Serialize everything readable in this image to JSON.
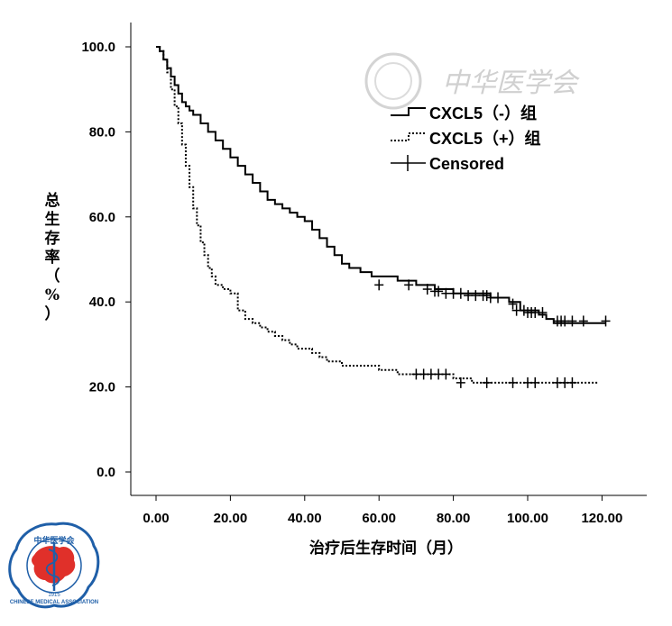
{
  "watermark": {
    "text": "中华医学会",
    "color": "#cfcfcf"
  },
  "logo": {
    "top_text": "中华医学会",
    "ring_text": "CHINESE MEDICAL ASSOCIATION",
    "year": "1915",
    "accent": "#e0302a",
    "ring": "#1f5fa8"
  },
  "chart_data": {
    "type": "line",
    "title": "",
    "xlabel": "治疗后生存时间（月）",
    "ylabel_chars": [
      "总",
      "生",
      "存",
      "率",
      "（",
      "%",
      "）"
    ],
    "xlim": [
      0,
      133.5
    ],
    "ylim": [
      0,
      100
    ],
    "xticks": [
      0,
      20,
      40,
      60,
      80,
      100,
      120
    ],
    "xtick_labels": [
      "0.00",
      "20.00",
      "40.00",
      "60.00",
      "80.00",
      "100.00",
      "120.00"
    ],
    "yticks": [
      0,
      20,
      40,
      60,
      80,
      100
    ],
    "ytick_labels": [
      "0.0",
      "20.0",
      "40.0",
      "60.0",
      "80.0",
      "100.0"
    ],
    "grid": false,
    "legend_position": "top-right",
    "legend": [
      "CXCL5（-）组",
      "CXCL5（+）组",
      "Censored"
    ],
    "series": [
      {
        "name": "CXCL5（-）组",
        "style": "solid",
        "points": [
          [
            0,
            100
          ],
          [
            1,
            99
          ],
          [
            2,
            97
          ],
          [
            3,
            95
          ],
          [
            4,
            93
          ],
          [
            5,
            91
          ],
          [
            6,
            89
          ],
          [
            7,
            87
          ],
          [
            8,
            86
          ],
          [
            9,
            85
          ],
          [
            10,
            84
          ],
          [
            12,
            82
          ],
          [
            14,
            80
          ],
          [
            16,
            78
          ],
          [
            18,
            76
          ],
          [
            20,
            74
          ],
          [
            22,
            72
          ],
          [
            24,
            70
          ],
          [
            26,
            68
          ],
          [
            28,
            66
          ],
          [
            30,
            64
          ],
          [
            32,
            63
          ],
          [
            34,
            62
          ],
          [
            36,
            61
          ],
          [
            38,
            60
          ],
          [
            40,
            59
          ],
          [
            42,
            57
          ],
          [
            44,
            55
          ],
          [
            46,
            53
          ],
          [
            48,
            51
          ],
          [
            50,
            49
          ],
          [
            52,
            48
          ],
          [
            55,
            47
          ],
          [
            58,
            46
          ],
          [
            60,
            46
          ],
          [
            65,
            45
          ],
          [
            70,
            44
          ],
          [
            75,
            43
          ],
          [
            80,
            42
          ],
          [
            85,
            42
          ],
          [
            90,
            41
          ],
          [
            95,
            40
          ],
          [
            98,
            38
          ],
          [
            100,
            38
          ],
          [
            103,
            37
          ],
          [
            105,
            36
          ],
          [
            107,
            35
          ],
          [
            110,
            35
          ],
          [
            115,
            35
          ],
          [
            121,
            35
          ]
        ],
        "censored": [
          [
            60,
            44
          ],
          [
            68,
            44
          ],
          [
            73,
            43
          ],
          [
            75,
            42.5
          ],
          [
            76,
            42.5
          ],
          [
            78,
            42
          ],
          [
            80,
            42
          ],
          [
            82,
            42
          ],
          [
            84,
            41.5
          ],
          [
            86,
            41.5
          ],
          [
            88,
            41.5
          ],
          [
            89,
            41.5
          ],
          [
            90,
            41
          ],
          [
            92,
            41
          ],
          [
            96,
            39.5
          ],
          [
            97,
            38
          ],
          [
            99,
            38
          ],
          [
            100,
            37.5
          ],
          [
            101,
            37.5
          ],
          [
            102,
            37.5
          ],
          [
            104,
            37.5
          ],
          [
            108,
            35.5
          ],
          [
            109,
            35.5
          ],
          [
            110,
            35.5
          ],
          [
            112,
            35.5
          ],
          [
            115,
            35.5
          ],
          [
            121,
            35.5
          ]
        ]
      },
      {
        "name": "CXCL5（+）组",
        "style": "dotted",
        "points": [
          [
            0,
            100
          ],
          [
            1,
            99
          ],
          [
            2,
            97
          ],
          [
            3,
            94
          ],
          [
            4,
            90
          ],
          [
            5,
            86
          ],
          [
            6,
            82
          ],
          [
            7,
            77
          ],
          [
            8,
            72
          ],
          [
            9,
            67
          ],
          [
            10,
            62
          ],
          [
            11,
            58
          ],
          [
            12,
            54
          ],
          [
            13,
            51
          ],
          [
            14,
            48
          ],
          [
            15,
            46
          ],
          [
            16,
            44
          ],
          [
            18,
            43
          ],
          [
            20,
            42
          ],
          [
            22,
            38
          ],
          [
            24,
            36
          ],
          [
            26,
            35
          ],
          [
            28,
            34
          ],
          [
            30,
            33
          ],
          [
            32,
            32
          ],
          [
            34,
            31
          ],
          [
            36,
            30
          ],
          [
            38,
            29
          ],
          [
            40,
            29
          ],
          [
            42,
            28
          ],
          [
            44,
            27
          ],
          [
            46,
            26
          ],
          [
            48,
            26
          ],
          [
            50,
            25
          ],
          [
            55,
            25
          ],
          [
            60,
            24
          ],
          [
            65,
            23
          ],
          [
            70,
            23
          ],
          [
            75,
            23
          ],
          [
            80,
            22
          ],
          [
            85,
            21
          ],
          [
            90,
            21
          ],
          [
            100,
            21
          ],
          [
            110,
            21
          ],
          [
            119,
            21
          ]
        ],
        "censored": [
          [
            70,
            23
          ],
          [
            72,
            23
          ],
          [
            74,
            23
          ],
          [
            76,
            23
          ],
          [
            78,
            23
          ],
          [
            82,
            21
          ],
          [
            89,
            21
          ],
          [
            96,
            21
          ],
          [
            100,
            21
          ],
          [
            102,
            21
          ],
          [
            108,
            21
          ],
          [
            110,
            21
          ],
          [
            112,
            21
          ]
        ]
      }
    ]
  }
}
